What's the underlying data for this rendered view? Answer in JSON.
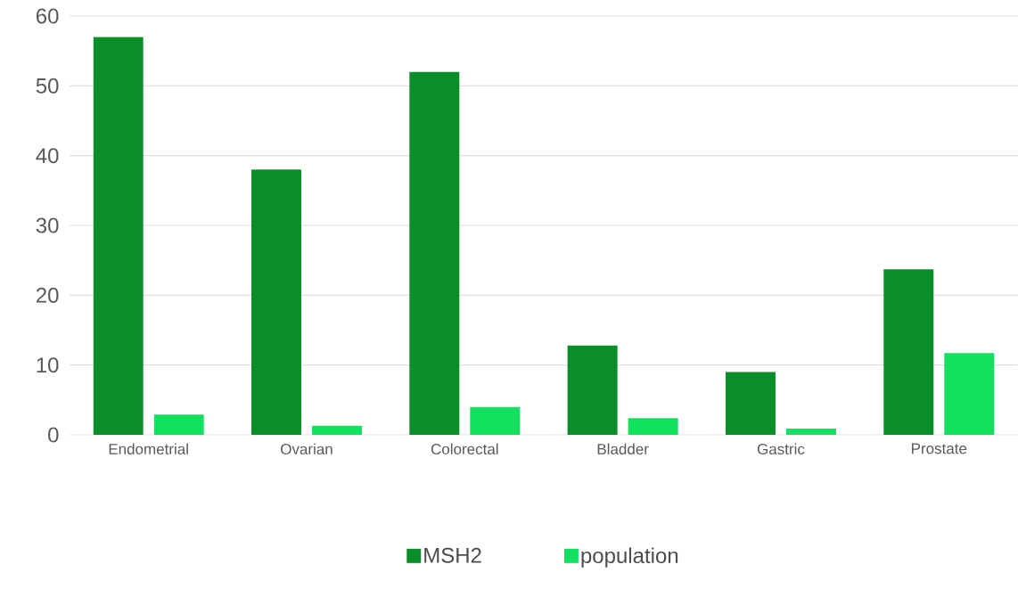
{
  "chart_data": {
    "type": "bar",
    "categories": [
      "Endometrial",
      "Ovarian",
      "Colorectal",
      "Bladder",
      "Gastric",
      "Prostate"
    ],
    "series": [
      {
        "name": "MSH2",
        "color": "#0a8f28",
        "values": [
          57,
          38,
          52,
          12.8,
          9,
          23.7
        ]
      },
      {
        "name": "population",
        "color": "#14e060",
        "values": [
          2.9,
          1.3,
          4.0,
          2.4,
          0.9,
          11.7
        ]
      }
    ],
    "ylim": [
      0,
      60
    ],
    "yticks": [
      0,
      10,
      20,
      30,
      40,
      50,
      60
    ],
    "grid": "y",
    "legend": "bottom"
  }
}
